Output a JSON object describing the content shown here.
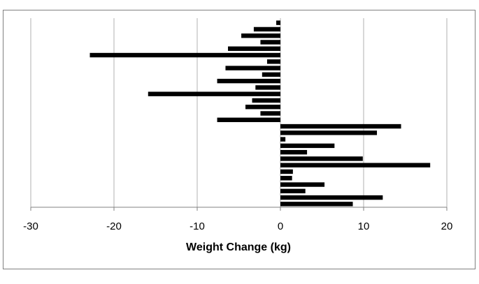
{
  "chart_data": {
    "type": "barh",
    "x_label": "Weight Change (kg)",
    "categories": [
      null,
      null,
      null,
      null,
      null,
      null,
      null,
      null,
      null,
      null,
      null,
      null,
      null,
      null,
      null,
      null,
      null,
      null,
      null,
      null,
      null,
      null,
      null,
      null,
      null,
      null,
      null,
      null,
      null
    ],
    "values": [
      -0.5,
      -3.2,
      -4.7,
      -2.4,
      -6.3,
      -22.9,
      -1.6,
      -6.6,
      -2.2,
      -7.6,
      -3.0,
      -15.9,
      -3.4,
      -4.2,
      -2.4,
      -7.6,
      14.5,
      11.6,
      0.6,
      6.5,
      3.2,
      9.9,
      18.0,
      1.5,
      1.4,
      5.3,
      3.0,
      12.3,
      8.7
    ],
    "color": "#000000",
    "xlim": [
      -30,
      20
    ],
    "xticks": [
      -30,
      -20,
      -10,
      0,
      10,
      20
    ],
    "grid": true
  }
}
